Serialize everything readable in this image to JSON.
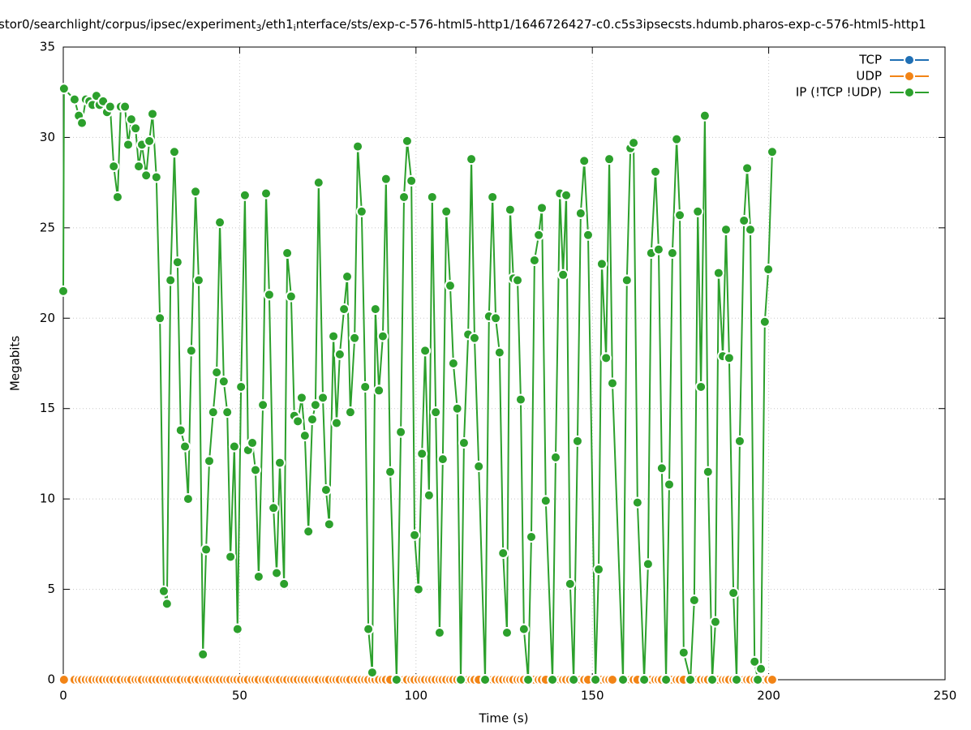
{
  "chart_data": {
    "type": "line",
    "title": [
      "stor0/searchlight/corpus/ipsec/experiment",
      "3",
      "/eth1",
      "i",
      "nterface/sts/exp-c-576-html5-http1/1646726427-c0.c5s3ipsecsts.hdumb.pharos-exp-c-576-html5-http1"
    ],
    "xlabel": "Time (s)",
    "ylabel": "Megabits",
    "xlim": [
      0,
      250
    ],
    "xticks": [
      0,
      50,
      100,
      150,
      200,
      250
    ],
    "ylim": [
      0,
      35
    ],
    "yticks": [
      0,
      5,
      10,
      15,
      20,
      25,
      30,
      35
    ],
    "grid": true,
    "legend": "top-right",
    "x": [
      0,
      0.2,
      3.2,
      4.4,
      5.3,
      6.4,
      7.4,
      8.3,
      9.4,
      10.3,
      11.3,
      12.4,
      13.3,
      14.3,
      15.4,
      16.3,
      17.5,
      18.4,
      19.3,
      20.5,
      21.4,
      22.3,
      23.5,
      24.4,
      25.3,
      26.4,
      27.4,
      28.5,
      29.4,
      30.4,
      31.5,
      32.4,
      33.3,
      34.5,
      35.4,
      36.3,
      37.5,
      38.4,
      39.6,
      40.5,
      41.4,
      42.5,
      43.5,
      44.4,
      45.5,
      46.5,
      47.4,
      48.5,
      49.4,
      50.4,
      51.5,
      52.4,
      53.6,
      54.5,
      55.4,
      56.6,
      57.5,
      58.4,
      59.6,
      60.5,
      61.4,
      62.6,
      63.5,
      64.6,
      65.5,
      66.5,
      67.6,
      68.5,
      69.5,
      70.6,
      71.5,
      72.4,
      73.6,
      74.5,
      75.4,
      76.6,
      77.5,
      78.4,
      79.6,
      80.5,
      81.4,
      82.6,
      83.5,
      84.6,
      85.6,
      86.5,
      87.6,
      88.5,
      89.5,
      90.6,
      91.5,
      92.7,
      94.5,
      95.7,
      96.6,
      97.5,
      98.7,
      99.6,
      100.7,
      101.7,
      102.6,
      103.7,
      104.6,
      105.6,
      106.7,
      107.6,
      108.6,
      109.7,
      110.6,
      111.7,
      112.7,
      113.6,
      114.8,
      115.7,
      116.6,
      117.8,
      119.6,
      120.7,
      121.7,
      122.6,
      123.7,
      124.7,
      125.8,
      126.7,
      127.6,
      128.8,
      129.7,
      130.6,
      131.8,
      132.7,
      133.6,
      134.8,
      135.7,
      136.8,
      138.7,
      139.6,
      140.8,
      141.7,
      142.6,
      143.7,
      144.7,
      145.8,
      146.7,
      147.7,
      148.8,
      150.9,
      151.8,
      152.7,
      153.9,
      154.8,
      155.7,
      158.7,
      159.8,
      160.8,
      161.7,
      162.8,
      164.7,
      165.8,
      166.7,
      167.9,
      168.8,
      169.7,
      170.9,
      171.8,
      172.7,
      173.9,
      174.8,
      175.9,
      177.8,
      178.9,
      179.9,
      180.8,
      181.9,
      182.8,
      184.0,
      184.9,
      185.8,
      187.0,
      187.9,
      188.8,
      190.0,
      190.9,
      191.8,
      193.0,
      193.9,
      194.8,
      196.0,
      196.9,
      197.8,
      198.9,
      199.9,
      201.0
    ],
    "series": [
      {
        "name": "TCP",
        "color": "#1f6fb4",
        "values": [
          0,
          0,
          0,
          0,
          0,
          0,
          0,
          0,
          0,
          0,
          0,
          0,
          0,
          0,
          0,
          0,
          0,
          0,
          0,
          0,
          0,
          0,
          0,
          0,
          0,
          0,
          0,
          0,
          0,
          0,
          0,
          0,
          0,
          0,
          0,
          0,
          0,
          0,
          0,
          0,
          0,
          0,
          0,
          0,
          0,
          0,
          0,
          0,
          0,
          0,
          0,
          0,
          0,
          0,
          0,
          0,
          0,
          0,
          0,
          0,
          0,
          0,
          0,
          0,
          0,
          0,
          0,
          0,
          0,
          0,
          0,
          0,
          0,
          0,
          0,
          0,
          0,
          0,
          0,
          0,
          0,
          0,
          0,
          0,
          0,
          0,
          0,
          0,
          0,
          0,
          0,
          0,
          0,
          0,
          0,
          0,
          0,
          0,
          0,
          0,
          0,
          0,
          0,
          0,
          0,
          0,
          0,
          0,
          0,
          0,
          0,
          0,
          0,
          0,
          0,
          0,
          0,
          0,
          0,
          0,
          0,
          0,
          0,
          0,
          0,
          0,
          0,
          0,
          0,
          0,
          0,
          0,
          0,
          0,
          0,
          0,
          0,
          0,
          0,
          0,
          0,
          0,
          0,
          0,
          0,
          0,
          0,
          0,
          0,
          0,
          0,
          0,
          0,
          0,
          0,
          0,
          0,
          0,
          0,
          0,
          0,
          0,
          0,
          0,
          0,
          0,
          0,
          0,
          0,
          0,
          0,
          0,
          0,
          0,
          0,
          0,
          0,
          0,
          0,
          0,
          0,
          0,
          0,
          0,
          0,
          0,
          0,
          0,
          0,
          0,
          0,
          0
        ]
      },
      {
        "name": "UDP",
        "color": "#f28416",
        "values": [
          0,
          0,
          0,
          0,
          0,
          0,
          0,
          0,
          0,
          0,
          0,
          0,
          0,
          0,
          0,
          0,
          0,
          0,
          0,
          0,
          0,
          0,
          0,
          0,
          0,
          0,
          0,
          0,
          0,
          0,
          0,
          0,
          0,
          0,
          0,
          0,
          0,
          0,
          0,
          0,
          0,
          0,
          0,
          0,
          0,
          0,
          0,
          0,
          0,
          0,
          0,
          0,
          0,
          0,
          0,
          0,
          0,
          0,
          0,
          0,
          0,
          0,
          0,
          0,
          0,
          0,
          0,
          0,
          0,
          0,
          0,
          0,
          0,
          0,
          0,
          0,
          0,
          0,
          0,
          0,
          0,
          0,
          0,
          0,
          0,
          0,
          0,
          0,
          0,
          0,
          0,
          0,
          0,
          0,
          0,
          0,
          0,
          0,
          0,
          0,
          0,
          0,
          0,
          0,
          0,
          0,
          0,
          0,
          0,
          0,
          0,
          0,
          0,
          0,
          0,
          0,
          0,
          0,
          0,
          0,
          0,
          0,
          0,
          0,
          0,
          0,
          0,
          0,
          0,
          0,
          0,
          0,
          0,
          0,
          0,
          0,
          0,
          0,
          0,
          0,
          0,
          0,
          0,
          0,
          0,
          0,
          0,
          0,
          0,
          0,
          0,
          0,
          0,
          0,
          0,
          0,
          0,
          0,
          0,
          0,
          0,
          0,
          0,
          0,
          0,
          0,
          0,
          0,
          0,
          0,
          0,
          0,
          0,
          0,
          0,
          0,
          0,
          0,
          0,
          0,
          0,
          0,
          0,
          0,
          0,
          0,
          0,
          0,
          0,
          0,
          0,
          0
        ]
      },
      {
        "name": "IP (!TCP  !UDP)",
        "color": "#2ca02c",
        "values": [
          21.5,
          32.7,
          32.1,
          31.2,
          30.8,
          32.1,
          32.0,
          31.8,
          32.3,
          31.8,
          32.0,
          31.4,
          31.7,
          28.4,
          26.7,
          31.7,
          31.7,
          29.6,
          31.0,
          30.5,
          28.4,
          29.6,
          27.9,
          29.8,
          31.3,
          27.8,
          20.0,
          4.9,
          4.2,
          22.1,
          29.2,
          23.1,
          13.8,
          12.9,
          10.0,
          18.2,
          27.0,
          22.1,
          1.4,
          7.2,
          12.1,
          14.8,
          17.0,
          25.3,
          16.5,
          14.8,
          6.8,
          12.9,
          2.8,
          16.2,
          26.8,
          12.7,
          13.1,
          11.6,
          5.7,
          15.2,
          26.9,
          21.3,
          9.5,
          5.9,
          12.0,
          5.3,
          23.6,
          21.2,
          14.6,
          14.3,
          15.6,
          13.5,
          8.2,
          14.4,
          15.2,
          27.5,
          15.6,
          10.5,
          8.6,
          19.0,
          14.2,
          18.0,
          20.5,
          22.3,
          14.8,
          18.9,
          29.5,
          25.9,
          16.2,
          2.8,
          0.4,
          20.5,
          16.0,
          19.0,
          27.7,
          11.5,
          0,
          13.7,
          26.7,
          29.8,
          27.6,
          8.0,
          5.0,
          12.5,
          18.2,
          10.2,
          26.7,
          14.8,
          2.6,
          12.2,
          25.9,
          21.8,
          17.5,
          15.0,
          0,
          13.1,
          19.1,
          28.8,
          18.9,
          11.8,
          0,
          20.1,
          26.7,
          20.0,
          18.1,
          7.0,
          2.6,
          26.0,
          22.2,
          22.1,
          15.5,
          2.8,
          0,
          7.9,
          23.2,
          24.6,
          26.1,
          9.9,
          0,
          12.3,
          26.9,
          22.4,
          26.8,
          5.3,
          0,
          13.2,
          25.8,
          28.7,
          24.6,
          0,
          6.1,
          23.0,
          17.8,
          28.8,
          16.4,
          0,
          22.1,
          29.4,
          29.7,
          9.8,
          0,
          6.4,
          23.6,
          28.1,
          23.8,
          11.7,
          0,
          10.8,
          23.6,
          29.9,
          25.7,
          1.5,
          0,
          4.4,
          25.9,
          16.2,
          31.2,
          11.5,
          0,
          3.2,
          22.5,
          17.9,
          24.9,
          17.8,
          4.8,
          0,
          13.2,
          25.4,
          28.3,
          24.9,
          1.0,
          0,
          0.6,
          19.8,
          22.7,
          29.2
        ]
      }
    ]
  }
}
